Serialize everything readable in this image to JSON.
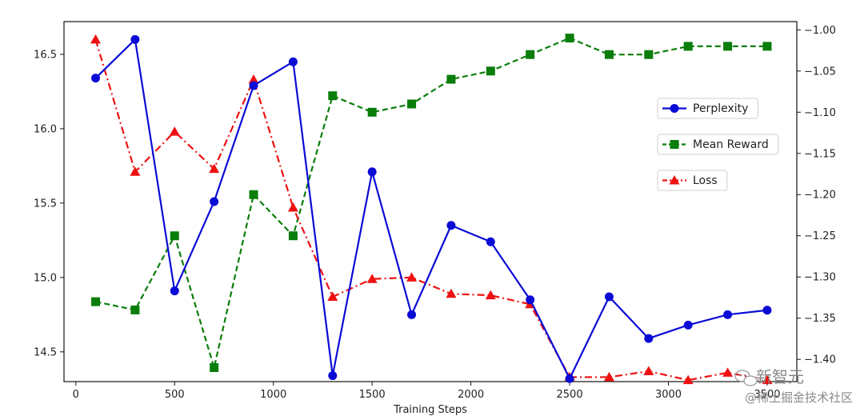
{
  "chart_data": {
    "type": "line",
    "xlabel": "Training Steps",
    "x": [
      100,
      300,
      500,
      700,
      900,
      1100,
      1300,
      1500,
      1700,
      1900,
      2100,
      2300,
      2500,
      2700,
      2900,
      3100,
      3300,
      3500
    ],
    "xlim": [
      -60,
      3650
    ],
    "xticks": [
      0,
      500,
      1000,
      1500,
      2000,
      2500,
      3000,
      3500
    ],
    "x_tick_labels": [
      "0",
      "500",
      "1000",
      "1500",
      "2000",
      "2500",
      "3000",
      "3500"
    ],
    "y_left_lim": [
      14.3,
      16.72
    ],
    "y_left_ticks": [
      14.5,
      15.0,
      15.5,
      16.0,
      16.5
    ],
    "y_left_tick_labels": [
      "14.5",
      "15.0",
      "15.5",
      "16.0",
      "16.5"
    ],
    "y_right_lim": [
      -1.427,
      -0.99
    ],
    "y_right_ticks": [
      -1.4,
      -1.35,
      -1.3,
      -1.25,
      -1.2,
      -1.15,
      -1.1,
      -1.05,
      -1.0
    ],
    "y_right_tick_labels": [
      "−1.40",
      "−1.35",
      "−1.30",
      "−1.25",
      "−1.20",
      "−1.15",
      "−1.10",
      "−1.05",
      "−1.00"
    ],
    "legend_position": "right",
    "series": [
      {
        "name": "Perplexity",
        "axis": "left",
        "color": "#0b0bd6",
        "line_style": "solid",
        "marker": "circle",
        "values": [
          16.34,
          16.6,
          14.91,
          15.51,
          16.29,
          16.45,
          14.34,
          15.71,
          14.75,
          15.35,
          15.24,
          14.85,
          14.32,
          14.87,
          14.59,
          14.68,
          14.75,
          14.78
        ]
      },
      {
        "name": "Mean Reward",
        "axis": "right",
        "color": "#0a7d0a",
        "line_style": "dashed",
        "marker": "square",
        "values": [
          -1.33,
          -1.34,
          -1.25,
          -1.41,
          -1.2,
          -1.25,
          -1.08,
          -1.1,
          -1.09,
          -1.06,
          -1.05,
          -1.03,
          -1.01,
          -1.03,
          -1.03,
          -1.02,
          -1.02,
          -1.02
        ]
      },
      {
        "name": "Loss",
        "axis": "left",
        "color": "#ee1111",
        "line_style": "dashdot",
        "marker": "triangle",
        "values": [
          16.6,
          15.71,
          15.98,
          15.73,
          16.33,
          15.47,
          14.87,
          14.99,
          15.0,
          14.89,
          14.88,
          14.82,
          14.33,
          14.33,
          14.37,
          14.31,
          14.36,
          14.31
        ]
      }
    ]
  },
  "watermark": {
    "line1": "新智元",
    "line2": "@稀土掘金技术社区"
  }
}
